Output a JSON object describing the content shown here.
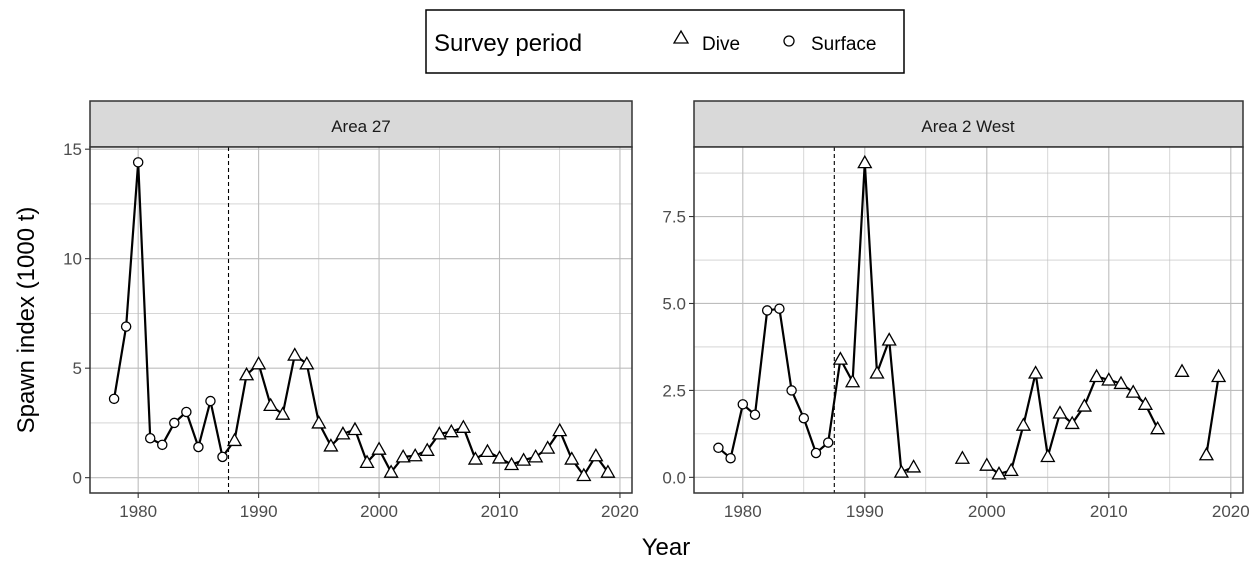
{
  "legend": {
    "title": "Survey period",
    "items": [
      {
        "label": "Dive",
        "shape": "triangle"
      },
      {
        "label": "Surface",
        "shape": "circle"
      }
    ]
  },
  "axes": {
    "xlabel": "Year",
    "ylabel": "Spawn index (1000 t)"
  },
  "colors": {
    "strip_fill": "#d9d9d9",
    "grid": "#bdbdbd",
    "line": "#000000"
  },
  "chart_data": [
    {
      "type": "line",
      "panel": "Area 27",
      "xlim": [
        1976,
        2021
      ],
      "ylim": [
        -0.7,
        15.1
      ],
      "x_ticks": [
        1980,
        1990,
        2000,
        2010,
        2020
      ],
      "y_ticks": [
        0,
        5,
        10,
        15
      ],
      "y_tick_labels": [
        "0",
        "5",
        "10",
        "15"
      ],
      "y_minor": [
        2.5,
        7.5,
        12.5
      ],
      "vline_x": 1987.5,
      "series": [
        {
          "name": "Surface",
          "shape": "circle",
          "x": [
            1978,
            1979,
            1980,
            1981,
            1982,
            1983,
            1984,
            1985,
            1986,
            1987
          ],
          "y": [
            3.6,
            6.9,
            14.4,
            1.8,
            1.5,
            2.5,
            3.0,
            1.4,
            3.5,
            0.95
          ]
        },
        {
          "name": "Dive",
          "shape": "triangle",
          "x": [
            1988,
            1989,
            1990,
            1991,
            1992,
            1993,
            1994,
            1995,
            1996,
            1997,
            1998,
            1999,
            2000,
            2001,
            2002,
            2003,
            2004,
            2005,
            2006,
            2007,
            2008,
            2009,
            2010,
            2011,
            2012,
            2013,
            2014,
            2015,
            2016,
            2017,
            2018,
            2019
          ],
          "y": [
            1.7,
            4.7,
            5.2,
            3.3,
            2.9,
            5.6,
            5.2,
            2.5,
            1.45,
            2.0,
            2.2,
            0.7,
            1.3,
            0.25,
            0.95,
            1.0,
            1.25,
            2.0,
            2.1,
            2.3,
            0.85,
            1.2,
            0.9,
            0.6,
            0.8,
            0.95,
            1.35,
            2.15,
            0.85,
            0.1,
            1.0,
            0.25
          ]
        }
      ],
      "gaps": []
    },
    {
      "type": "line",
      "panel": "Area 2 West",
      "xlim": [
        1976,
        2021
      ],
      "ylim": [
        -0.45,
        9.5
      ],
      "x_ticks": [
        1980,
        1990,
        2000,
        2010,
        2020
      ],
      "y_ticks": [
        0,
        2.5,
        5,
        7.5
      ],
      "y_tick_labels": [
        "0.0",
        "2.5",
        "5.0",
        "7.5"
      ],
      "y_minor": [
        1.25,
        3.75,
        6.25,
        8.75
      ],
      "vline_x": 1987.5,
      "series": [
        {
          "name": "Surface",
          "shape": "circle",
          "x": [
            1978,
            1979,
            1980,
            1981,
            1982,
            1983,
            1984,
            1985,
            1986,
            1987
          ],
          "y": [
            0.85,
            0.55,
            2.1,
            1.8,
            4.8,
            4.85,
            2.5,
            1.7,
            0.7,
            1.0
          ]
        },
        {
          "name": "Dive",
          "shape": "triangle",
          "x": [
            1988,
            1989,
            1990,
            1991,
            1992,
            1993,
            1994,
            1998,
            2000,
            2001,
            2002,
            2003,
            2004,
            2005,
            2006,
            2007,
            2008,
            2009,
            2010,
            2011,
            2012,
            2013,
            2014,
            2016,
            2018,
            2019
          ],
          "y": [
            3.4,
            2.75,
            9.05,
            3.0,
            3.95,
            0.15,
            0.3,
            0.55,
            0.35,
            0.1,
            0.2,
            1.5,
            3.0,
            0.6,
            1.85,
            1.55,
            2.05,
            2.9,
            2.8,
            2.7,
            2.45,
            2.1,
            1.4,
            3.05,
            0.65,
            2.9
          ]
        }
      ],
      "gaps": [
        1995,
        1999,
        2015,
        2017
      ]
    }
  ]
}
